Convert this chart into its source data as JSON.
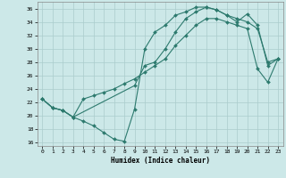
{
  "xlabel": "Humidex (Indice chaleur)",
  "background_color": "#cce8e8",
  "grid_color": "#aacccc",
  "line_color": "#2d7a6e",
  "xlim": [
    -0.5,
    23.5
  ],
  "ylim": [
    15.5,
    37.0
  ],
  "xticks": [
    0,
    1,
    2,
    3,
    4,
    5,
    6,
    7,
    8,
    9,
    10,
    11,
    12,
    13,
    14,
    15,
    16,
    17,
    18,
    19,
    20,
    21,
    22,
    23
  ],
  "yticks": [
    16,
    18,
    20,
    22,
    24,
    26,
    28,
    30,
    32,
    34,
    36
  ],
  "line1_x": [
    0,
    1,
    2,
    3,
    4,
    5,
    6,
    7,
    8,
    9,
    10,
    11,
    12,
    13,
    14,
    15,
    16,
    17,
    18,
    19,
    20,
    21,
    22,
    23
  ],
  "line1_y": [
    22.5,
    21.2,
    20.8,
    19.8,
    19.2,
    18.5,
    17.5,
    16.5,
    16.2,
    21.0,
    30.0,
    32.5,
    33.5,
    35.0,
    35.5,
    36.2,
    36.2,
    35.8,
    35.0,
    34.5,
    34.0,
    33.0,
    28.0,
    28.5
  ],
  "line2_x": [
    0,
    1,
    2,
    3,
    9,
    10,
    11,
    12,
    13,
    14,
    15,
    16,
    17,
    18,
    19,
    20,
    21,
    22,
    23
  ],
  "line2_y": [
    22.5,
    21.2,
    20.8,
    19.8,
    24.5,
    27.5,
    28.0,
    30.0,
    32.5,
    34.5,
    35.5,
    36.2,
    35.8,
    35.0,
    34.0,
    35.2,
    33.5,
    27.5,
    28.5
  ],
  "line3_x": [
    0,
    1,
    2,
    3,
    4,
    5,
    6,
    7,
    8,
    9,
    10,
    11,
    12,
    13,
    14,
    15,
    16,
    17,
    18,
    19,
    20,
    21,
    22,
    23
  ],
  "line3_y": [
    22.5,
    21.2,
    20.8,
    19.8,
    22.5,
    23.0,
    23.5,
    24.0,
    24.8,
    25.5,
    26.5,
    27.5,
    28.5,
    30.5,
    32.0,
    33.5,
    34.5,
    34.5,
    34.0,
    33.5,
    33.0,
    27.0,
    25.0,
    28.5
  ]
}
